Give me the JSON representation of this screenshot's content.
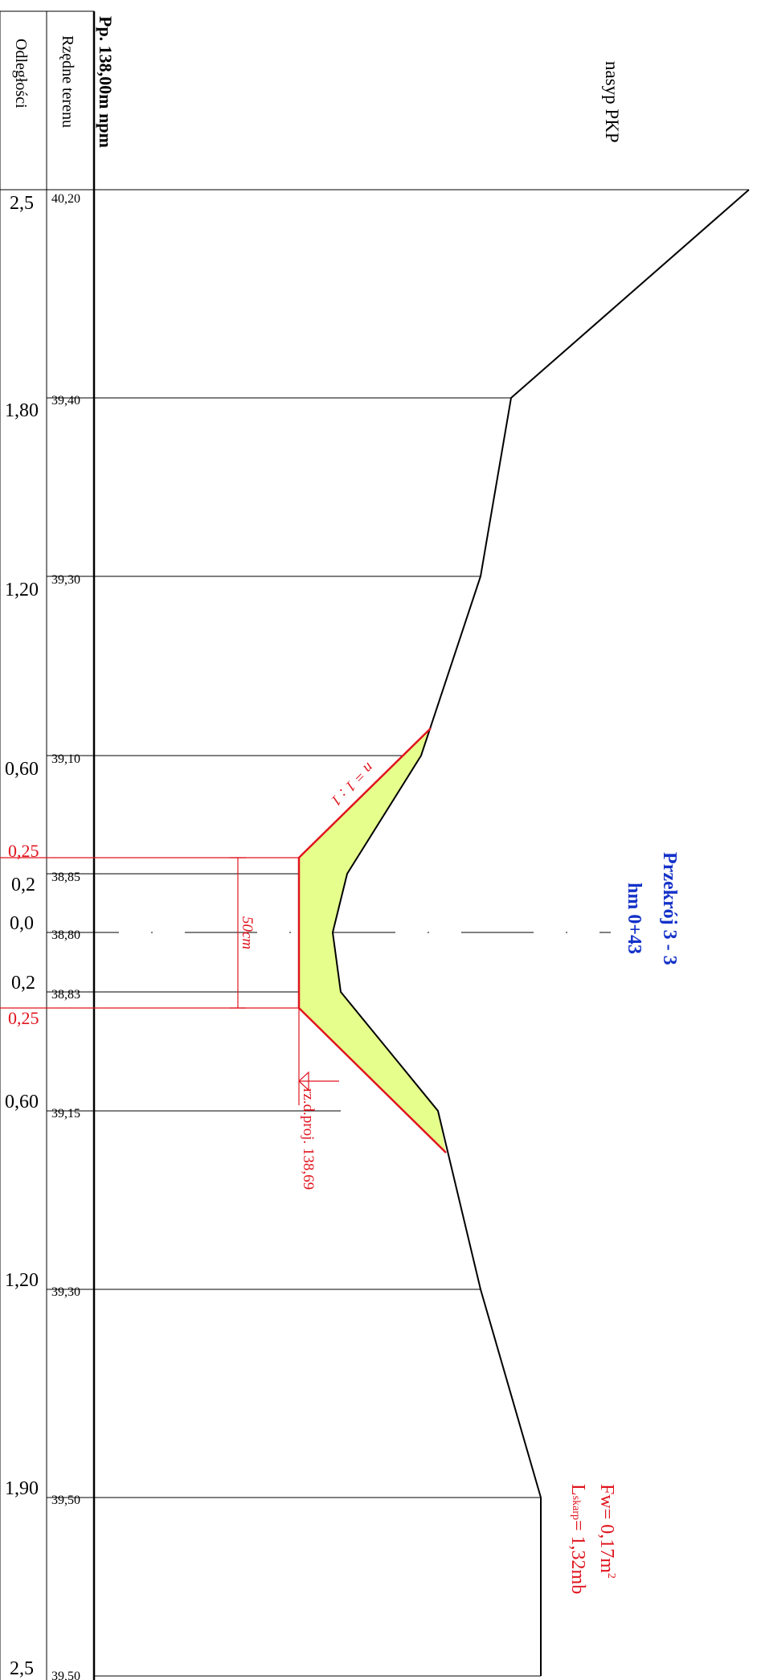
{
  "header": {
    "reference_level": "Pp. 138,00m npm",
    "ordinates_label": "Rzędne terenu",
    "distances_label": "Odległości"
  },
  "embankment_label": "nasyp PKP",
  "section": {
    "title": "Przekrój  3 - 3",
    "chainage": "hm 0+43"
  },
  "stations": [
    {
      "distance": "2,5",
      "ordinate": "40,20"
    },
    {
      "distance": "1,80",
      "ordinate": "39,40"
    },
    {
      "distance": "1,20",
      "ordinate": "39,30"
    },
    {
      "distance": "0,60",
      "ordinate": "39,10"
    },
    {
      "distance": "0,2",
      "ordinate": "38,85"
    },
    {
      "distance": "0,0",
      "ordinate": "38,80"
    },
    {
      "distance": "0,2",
      "ordinate": "38,83"
    },
    {
      "distance": "0,60",
      "ordinate": "39,15"
    },
    {
      "distance": "1,20",
      "ordinate": "39,30"
    },
    {
      "distance": "1,90",
      "ordinate": "39,50"
    },
    {
      "distance": "2,5",
      "ordinate": "39,50"
    }
  ],
  "design": {
    "bottom_half_width_top": "0,25",
    "bottom_half_width_bottom": "0,25",
    "slope_label": "n = 1 : 1",
    "depth_label": "50cm",
    "design_level_label": "rz.d.proj. 138,69"
  },
  "summary": {
    "area_prefix": "Fw= 0,17m",
    "area_sup": "2",
    "length_prefix": "L",
    "length_sub": "skarp",
    "length_value": "= 1,32mb"
  },
  "colors": {
    "terrain_line": "#000000",
    "design_line": "#e0141e",
    "excavation_fill": "#e6ff8c",
    "section_title": "#1432c8"
  }
}
